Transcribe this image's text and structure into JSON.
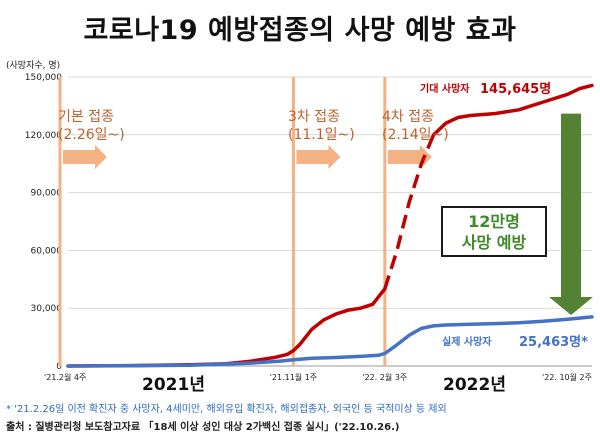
{
  "title": "코로나19 예방접종의  사망 예방 효과",
  "unit_label": "(사망자수, 명)",
  "chart_data": {
    "type": "line",
    "title": "코로나19 예방접종의  사망 예방 효과",
    "ylabel": "(사망자수, 명)",
    "ylim": [
      0,
      150000
    ],
    "yticks": [
      0,
      30000,
      60000,
      90000,
      120000,
      150000
    ],
    "ytick_labels": [
      "0",
      "30,000",
      "60,000",
      "90,000",
      "120,000",
      "150,000"
    ],
    "xlim": [
      0,
      86
    ],
    "xticks": [
      {
        "x": 0,
        "label": "'21.2월 4주"
      },
      {
        "x": 37,
        "label": "'21.11월 1주"
      },
      {
        "x": 52,
        "label": "'22. 2월 3주"
      },
      {
        "x": 86,
        "label": "'22. 10월 2주"
      }
    ],
    "years": [
      {
        "label": "2021년",
        "x": 14
      },
      {
        "label": "2022년",
        "x": 67
      }
    ],
    "stages": [
      {
        "x": 0,
        "label_line1": "기본 접종",
        "label_line2": "(2.26일~)"
      },
      {
        "x": 37,
        "label_line1": "3차 접종",
        "label_line2": "(11.1일~)"
      },
      {
        "x": 52,
        "label_line1": "4차 접종",
        "label_line2": "(2.14일~)"
      }
    ],
    "series": [
      {
        "name": "기대 사망자",
        "color": "#c00000",
        "final_value_label": "145,645명",
        "x": [
          0,
          10,
          20,
          26,
          30,
          34,
          36,
          37,
          38,
          40,
          42,
          44,
          46,
          48,
          50,
          51,
          52,
          54,
          56,
          58,
          60,
          62,
          64,
          66,
          70,
          74,
          78,
          82,
          84,
          86
        ],
        "y": [
          0,
          200,
          600,
          1200,
          2500,
          4500,
          6000,
          8000,
          11000,
          19000,
          24000,
          27000,
          29000,
          30000,
          32000,
          36000,
          40000,
          60000,
          85000,
          105000,
          120000,
          126000,
          129000,
          130000,
          131000,
          133000,
          137000,
          141000,
          144000,
          145645
        ]
      },
      {
        "name": "실제 사망자",
        "color": "#4472c4",
        "final_value_label": "25,463명*",
        "x": [
          0,
          10,
          20,
          30,
          35,
          37,
          40,
          44,
          48,
          51,
          52,
          54,
          56,
          58,
          60,
          62,
          66,
          70,
          74,
          78,
          82,
          86
        ],
        "y": [
          0,
          100,
          400,
          1500,
          2600,
          3200,
          4000,
          4400,
          5000,
          5600,
          6500,
          11000,
          16000,
          19500,
          20800,
          21300,
          21700,
          22000,
          22400,
          23200,
          24300,
          25463
        ]
      }
    ],
    "annotation": {
      "line1": "12만명",
      "line2": "사망 예방"
    }
  },
  "footnote": "* '21.2.26일 이전 확진자 중 사망자, 4세미만, 해외유입 확진자, 해외접종자, 외국인 등 국적미상 등 제외",
  "source": "출처 : 질병관리청 보도참고자료 「18세 이상 성인 대상 2가백신 접종 실시」('22.10.26.)",
  "colors": {
    "expected": "#c00000",
    "actual": "#4472c4",
    "stage_line": "#f4b183",
    "stage_arrow": "#f4b183",
    "stage_text": "#c0612b",
    "prevent_arrow": "#548235",
    "prevent_text": "#3f8a2b"
  }
}
